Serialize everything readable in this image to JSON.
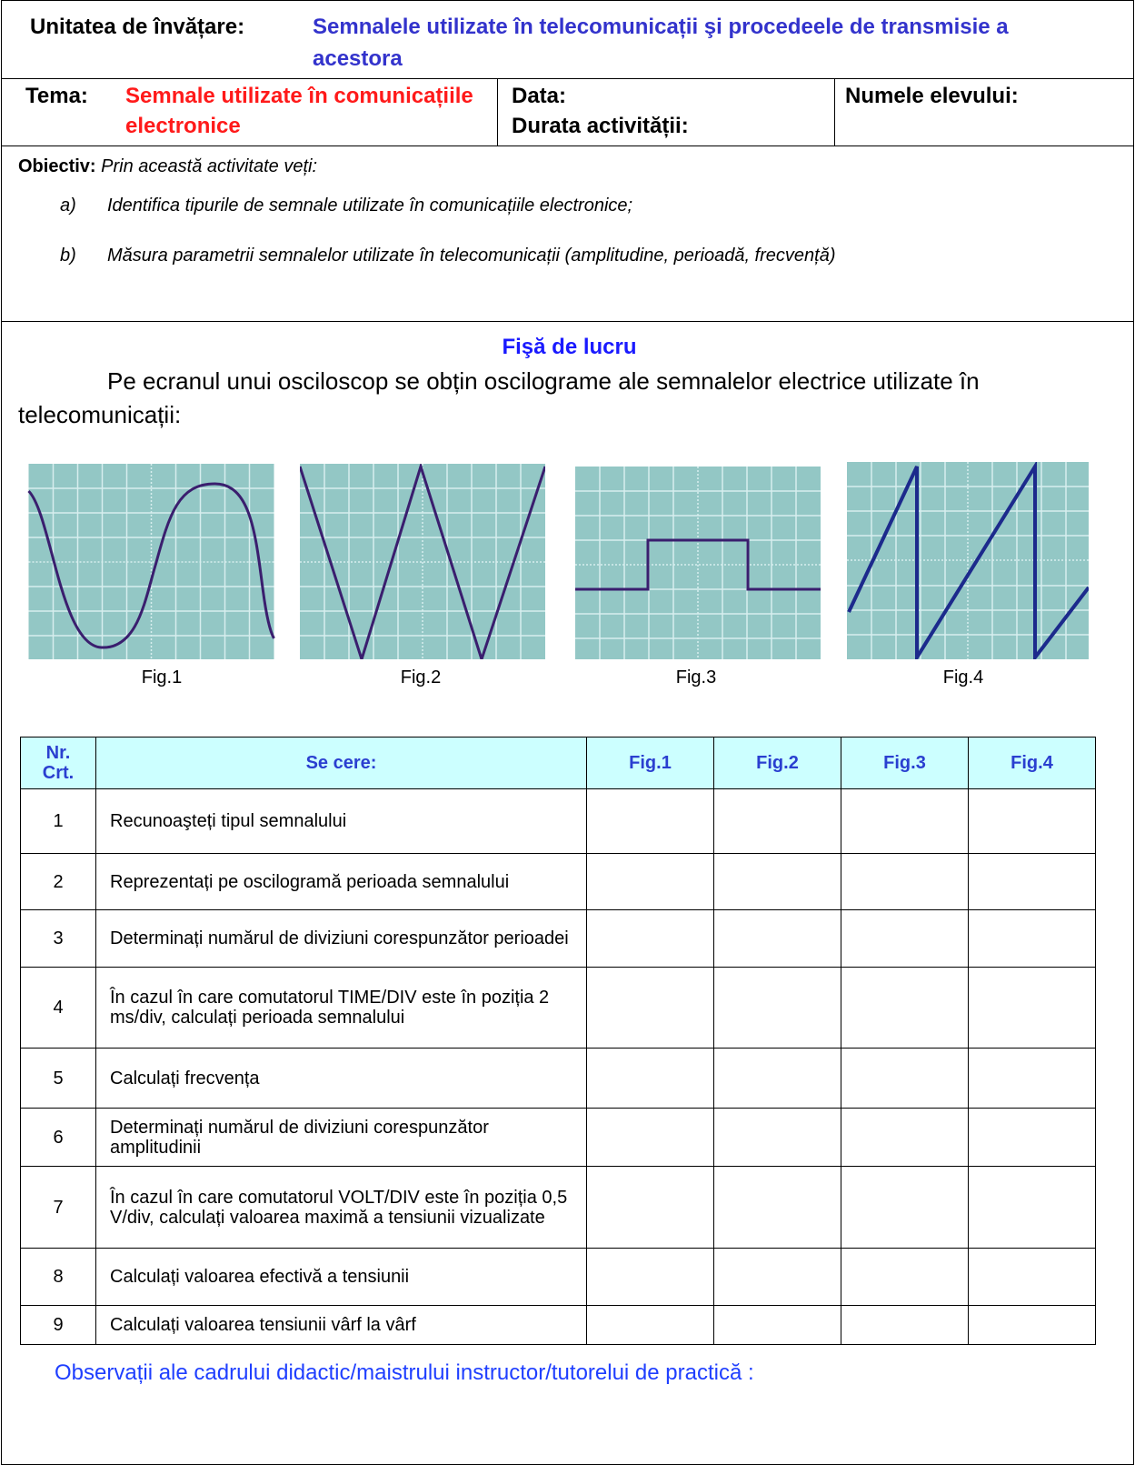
{
  "header": {
    "unit_label": "Unitatea de învățare:",
    "unit_title": "Semnalele utilizate în telecomunicații şi procedeele de transmisie a acestora",
    "theme_label": "Tema:",
    "theme_title": "Semnale utilizate în comunicațiile electronice",
    "date_label": "Data:",
    "duration_label": "Durata activității:",
    "student_label": "Numele elevului:"
  },
  "objective": {
    "label": "Obiectiv:",
    "intro": "Prin această activitate veți:",
    "items": [
      {
        "marker": "a)",
        "text": "Identifica  tipurile de semnale utilizate în comunicațiile electronice;"
      },
      {
        "marker": "b)",
        "text": "Măsura  parametrii semnalelor utilizate în telecomunicații (amplitudine, perioadă, frecvență)"
      }
    ]
  },
  "worksheet": {
    "title": "Fişă de lucru",
    "intro": "Pe ecranul unui osciloscop se obțin oscilograme ale  semnalelor  electrice utilizate în telecomunicații:",
    "figures": [
      "Fig.1",
      "Fig.2",
      "Fig.3",
      "Fig.4"
    ]
  },
  "table": {
    "header": [
      "Nr. Crt.",
      "Se cere:",
      "Fig.1",
      "Fig.2",
      "Fig.3",
      "Fig.4"
    ],
    "rows": [
      [
        "1",
        "Recunoaşteți tipul semnalului"
      ],
      [
        "2",
        "Reprezentați pe oscilogramă perioada semnalului"
      ],
      [
        "3",
        "Determinați numărul de diviziuni corespunzător perioadei"
      ],
      [
        "4",
        "În cazul în care comutatorul TIME/DIV este în poziția 2 ms/div, calculați perioada semnalului"
      ],
      [
        "5",
        "Calculați frecvența"
      ],
      [
        "6",
        "Determinați numărul de diviziuni corespunzător amplitudinii"
      ],
      [
        "7",
        "În cazul în care comutatorul VOLT/DIV este în poziția 0,5 V/div, calculați valoarea maximă a tensiunii vizualizate"
      ],
      [
        "8",
        "Calculați valoarea efectivă a tensiunii"
      ],
      [
        "9",
        "Calculați valoarea tensiunii vârf la vârf"
      ]
    ]
  },
  "footer": {
    "observations": "Observații ale cadrului didactic/maistrului instructor/tutorelui de practică :"
  }
}
